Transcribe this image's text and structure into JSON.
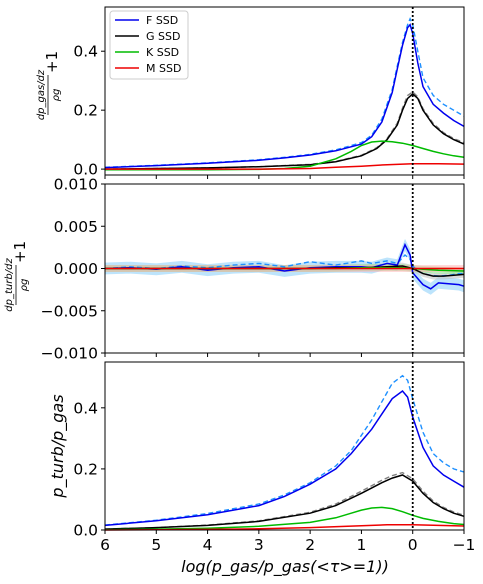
{
  "chart_data": [
    {
      "type": "line",
      "panel": "top",
      "ylabel_top": "dp_gas/dz",
      "ylabel_bottom": "ρg",
      "ylabel_suffix": "+1",
      "xlim": [
        6,
        -1
      ],
      "ylim": [
        -0.02,
        0.55
      ],
      "yticks": [
        0.0,
        0.2,
        0.4
      ],
      "ytick_labels": [
        "0.0",
        "0.2",
        "0.4"
      ],
      "vline_x": 0,
      "legend": {
        "placement": "top-left",
        "entries": [
          "F SSD",
          "G SSD",
          "K SSD",
          "M SSD"
        ]
      },
      "series": [
        {
          "name": "F SSD",
          "color": "#0000ee",
          "x": [
            6,
            5,
            4,
            3,
            2.5,
            2,
            1.5,
            1,
            0.8,
            0.6,
            0.4,
            0.3,
            0.2,
            0.1,
            0.05,
            0,
            -0.1,
            -0.2,
            -0.4,
            -0.6,
            -0.8,
            -1
          ],
          "y": [
            0.005,
            0.012,
            0.02,
            0.03,
            0.038,
            0.048,
            0.062,
            0.085,
            0.11,
            0.16,
            0.26,
            0.34,
            0.42,
            0.48,
            0.49,
            0.46,
            0.36,
            0.28,
            0.22,
            0.19,
            0.165,
            0.145
          ],
          "dashed": {
            "color": "#1e90ff",
            "y": [
              0.006,
              0.013,
              0.021,
              0.032,
              0.04,
              0.05,
              0.065,
              0.09,
              0.115,
              0.17,
              0.27,
              0.35,
              0.43,
              0.49,
              0.51,
              0.49,
              0.4,
              0.31,
              0.25,
              0.22,
              0.2,
              0.18
            ]
          }
        },
        {
          "name": "G SSD",
          "color": "#000000",
          "x": [
            6,
            5,
            4,
            3,
            2,
            1.5,
            1,
            0.7,
            0.5,
            0.3,
            0.2,
            0.1,
            0,
            -0.1,
            -0.2,
            -0.4,
            -0.6,
            -0.8,
            -1
          ],
          "y": [
            0.0,
            0.002,
            0.004,
            0.008,
            0.015,
            0.025,
            0.045,
            0.07,
            0.1,
            0.15,
            0.2,
            0.24,
            0.255,
            0.24,
            0.2,
            0.15,
            0.12,
            0.1,
            0.085
          ],
          "dashed": {
            "color": "#808080",
            "y": [
              0.0,
              0.002,
              0.004,
              0.008,
              0.016,
              0.026,
              0.047,
              0.073,
              0.104,
              0.156,
              0.207,
              0.25,
              0.262,
              0.245,
              0.205,
              0.155,
              0.124,
              0.104,
              0.09
            ]
          }
        },
        {
          "name": "K SSD",
          "color": "#00bb00",
          "x": [
            6,
            5,
            4,
            3,
            2.5,
            2,
            1.5,
            1.2,
            1,
            0.8,
            0.6,
            0.4,
            0.2,
            0,
            -0.2,
            -0.4,
            -0.6,
            -0.8,
            -1
          ],
          "y": [
            -0.002,
            -0.002,
            -0.002,
            -0.001,
            0.002,
            0.01,
            0.035,
            0.06,
            0.08,
            0.092,
            0.095,
            0.093,
            0.088,
            0.08,
            0.07,
            0.06,
            0.052,
            0.045,
            0.04
          ]
        },
        {
          "name": "M SSD",
          "color": "#ee0000",
          "x": [
            6,
            5,
            4,
            3,
            2,
            1.5,
            1,
            0.5,
            0,
            -0.5,
            -1
          ],
          "y": [
            0.0,
            0.0,
            0.0,
            0.0,
            0.002,
            0.006,
            0.01,
            0.015,
            0.018,
            0.018,
            0.017
          ]
        }
      ]
    },
    {
      "type": "line",
      "panel": "middle",
      "ylabel_top": "dp_turb/dz",
      "ylabel_bottom": "ρg",
      "ylabel_suffix": "+1",
      "xlim": [
        6,
        -1
      ],
      "ylim": [
        -0.01,
        0.01
      ],
      "yticks": [
        -0.01,
        -0.005,
        0.0,
        0.005,
        0.01
      ],
      "ytick_labels": [
        "−0.010",
        "−0.005",
        "0.000",
        "0.005",
        "0.010"
      ],
      "vline_x": 0,
      "series": [
        {
          "name": "F SSD",
          "color": "#0000ee",
          "band_color": "#87cefa",
          "x": [
            6,
            5.5,
            5,
            4.5,
            4,
            3.5,
            3,
            2.5,
            2,
            1.5,
            1,
            0.8,
            0.5,
            0.3,
            0.15,
            0.05,
            0,
            -0.1,
            -0.2,
            -0.35,
            -0.5,
            -0.7,
            -0.9,
            -1
          ],
          "y": [
            0.0,
            0.0001,
            -0.0001,
            0.0002,
            -0.0002,
            0.0001,
            0.0002,
            -0.0003,
            0.0001,
            0.0002,
            0.0002,
            0.0001,
            0.0006,
            0.0004,
            0.0028,
            0.0016,
            -0.0005,
            -0.0012,
            -0.0019,
            -0.0024,
            -0.0017,
            -0.0018,
            -0.0019,
            -0.0021
          ],
          "dashed": {
            "color": "#1e90ff",
            "y": [
              0.0,
              0.0002,
              0.0,
              0.0003,
              0.0001,
              0.0004,
              0.0006,
              0.0002,
              0.0008,
              0.0004,
              0.0009,
              0.0006,
              0.0009,
              0.0006,
              0.0016,
              0.0011,
              0.0003,
              -0.0003,
              -0.0006,
              -0.0008,
              -0.0009,
              -0.0008,
              -0.0006,
              -0.0006
            ]
          }
        },
        {
          "name": "G SSD",
          "color": "#000000",
          "band_color": "#c0c0c0",
          "x": [
            6,
            5,
            4,
            3,
            2,
            1.5,
            1,
            0.5,
            0.2,
            0,
            -0.2,
            -0.4,
            -0.6,
            -0.8,
            -1
          ],
          "y": [
            0.0,
            0.0,
            0.0,
            0.0,
            0.0,
            0.0001,
            0.0001,
            0.0002,
            0.0003,
            0.0,
            -0.0006,
            -0.0009,
            -0.0009,
            -0.0008,
            -0.0007
          ]
        },
        {
          "name": "K SSD",
          "color": "#00bb00",
          "band_color": "#90ee90",
          "x": [
            6,
            5,
            4,
            3,
            2,
            1.5,
            1,
            0.5,
            0.2,
            0,
            -0.2,
            -0.5,
            -1
          ],
          "y": [
            0.0,
            0.0,
            0.0,
            0.0,
            0.0,
            0.0,
            0.0001,
            0.0001,
            0.0001,
            0.0,
            -0.0001,
            -0.0002,
            -0.0003
          ]
        },
        {
          "name": "M SSD",
          "color": "#ee0000",
          "band_color": "#ffb0b0",
          "x": [
            6,
            4,
            2,
            0,
            -1
          ],
          "y": [
            0.0,
            0.0,
            0.0,
            0.0,
            0.0
          ]
        }
      ]
    },
    {
      "type": "line",
      "panel": "bottom",
      "ylabel": "p_turb/p_gas",
      "xlabel": "log(p_gas/p_gas(<τ>=1))",
      "xlim": [
        6,
        -1
      ],
      "xticks": [
        6,
        5,
        4,
        3,
        2,
        1,
        0,
        -1
      ],
      "xtick_labels": [
        "6",
        "5",
        "4",
        "3",
        "2",
        "1",
        "0",
        "−1"
      ],
      "ylim": [
        0.0,
        0.55
      ],
      "yticks": [
        0.0,
        0.2,
        0.4
      ],
      "ytick_labels": [
        "0.0",
        "0.2",
        "0.4"
      ],
      "vline_x": 0,
      "series": [
        {
          "name": "F SSD",
          "color": "#0000ee",
          "x": [
            6,
            5,
            4,
            3,
            2.5,
            2,
            1.5,
            1.2,
            1,
            0.8,
            0.6,
            0.4,
            0.2,
            0.1,
            0,
            -0.2,
            -0.4,
            -0.6,
            -0.8,
            -1
          ],
          "y": [
            0.015,
            0.03,
            0.05,
            0.08,
            0.11,
            0.15,
            0.2,
            0.25,
            0.29,
            0.33,
            0.38,
            0.43,
            0.455,
            0.435,
            0.37,
            0.27,
            0.21,
            0.18,
            0.16,
            0.14
          ],
          "dashed": {
            "color": "#1e90ff",
            "y": [
              0.016,
              0.032,
              0.054,
              0.085,
              0.115,
              0.155,
              0.21,
              0.26,
              0.31,
              0.36,
              0.42,
              0.48,
              0.505,
              0.49,
              0.43,
              0.32,
              0.25,
              0.22,
              0.2,
              0.19
            ]
          }
        },
        {
          "name": "G SSD",
          "color": "#000000",
          "x": [
            6,
            5,
            4,
            3,
            2,
            1.5,
            1,
            0.6,
            0.4,
            0.2,
            0,
            -0.2,
            -0.4,
            -0.6,
            -0.8,
            -1
          ],
          "y": [
            0.003,
            0.008,
            0.015,
            0.028,
            0.055,
            0.08,
            0.12,
            0.155,
            0.17,
            0.18,
            0.16,
            0.12,
            0.09,
            0.07,
            0.055,
            0.045
          ],
          "dashed": {
            "color": "#808080",
            "y": [
              0.003,
              0.008,
              0.016,
              0.03,
              0.058,
              0.085,
              0.127,
              0.163,
              0.178,
              0.188,
              0.168,
              0.127,
              0.095,
              0.074,
              0.059,
              0.048
            ]
          }
        },
        {
          "name": "K SSD",
          "color": "#00bb00",
          "x": [
            6,
            5,
            4,
            3,
            2,
            1.5,
            1.2,
            1,
            0.8,
            0.6,
            0.4,
            0.2,
            0,
            -0.2,
            -0.5,
            -0.8,
            -1
          ],
          "y": [
            0.001,
            0.003,
            0.006,
            0.012,
            0.025,
            0.04,
            0.055,
            0.065,
            0.072,
            0.074,
            0.07,
            0.06,
            0.048,
            0.038,
            0.028,
            0.021,
            0.018
          ]
        },
        {
          "name": "M SSD",
          "color": "#ee0000",
          "x": [
            6,
            5,
            4,
            3,
            2,
            1,
            0.5,
            0,
            -0.5,
            -1
          ],
          "y": [
            0.0,
            0.001,
            0.002,
            0.004,
            0.008,
            0.014,
            0.017,
            0.017,
            0.015,
            0.013
          ]
        }
      ]
    }
  ]
}
